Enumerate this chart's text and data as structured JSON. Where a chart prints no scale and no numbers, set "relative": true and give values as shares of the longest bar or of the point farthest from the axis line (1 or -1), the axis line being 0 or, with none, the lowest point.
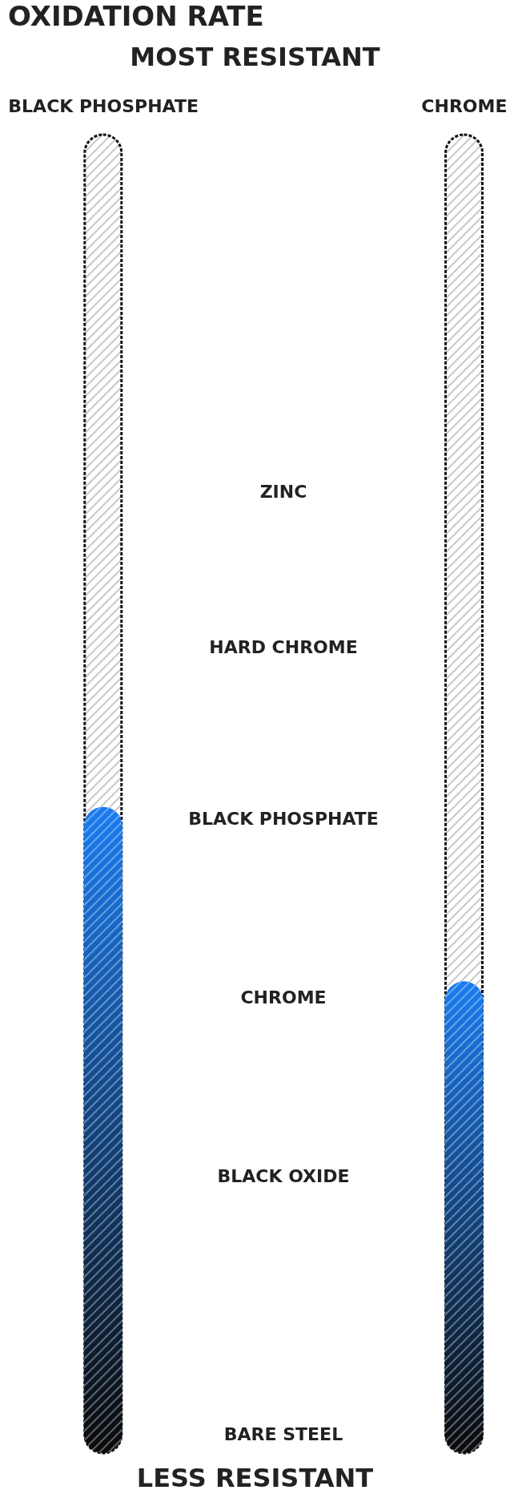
{
  "chart_data": {
    "type": "bar",
    "title": "OXIDATION RATE",
    "annotations": [
      "MOST RESISTANT",
      "LESS RESISTANT",
      "ZINC",
      "HARD CHROME",
      "BLACK PHOSPHATE",
      "CHROME",
      "BLACK OXIDE",
      "BARE STEEL"
    ],
    "categories": [
      "BLACK PHOSPHATE",
      "CHROME"
    ],
    "series": [
      {
        "color": "#1a7cf0",
        "values": [
          1,
          0.73
        ]
      }
    ],
    "relative": true,
    "grid": false,
    "legend": false
  }
}
